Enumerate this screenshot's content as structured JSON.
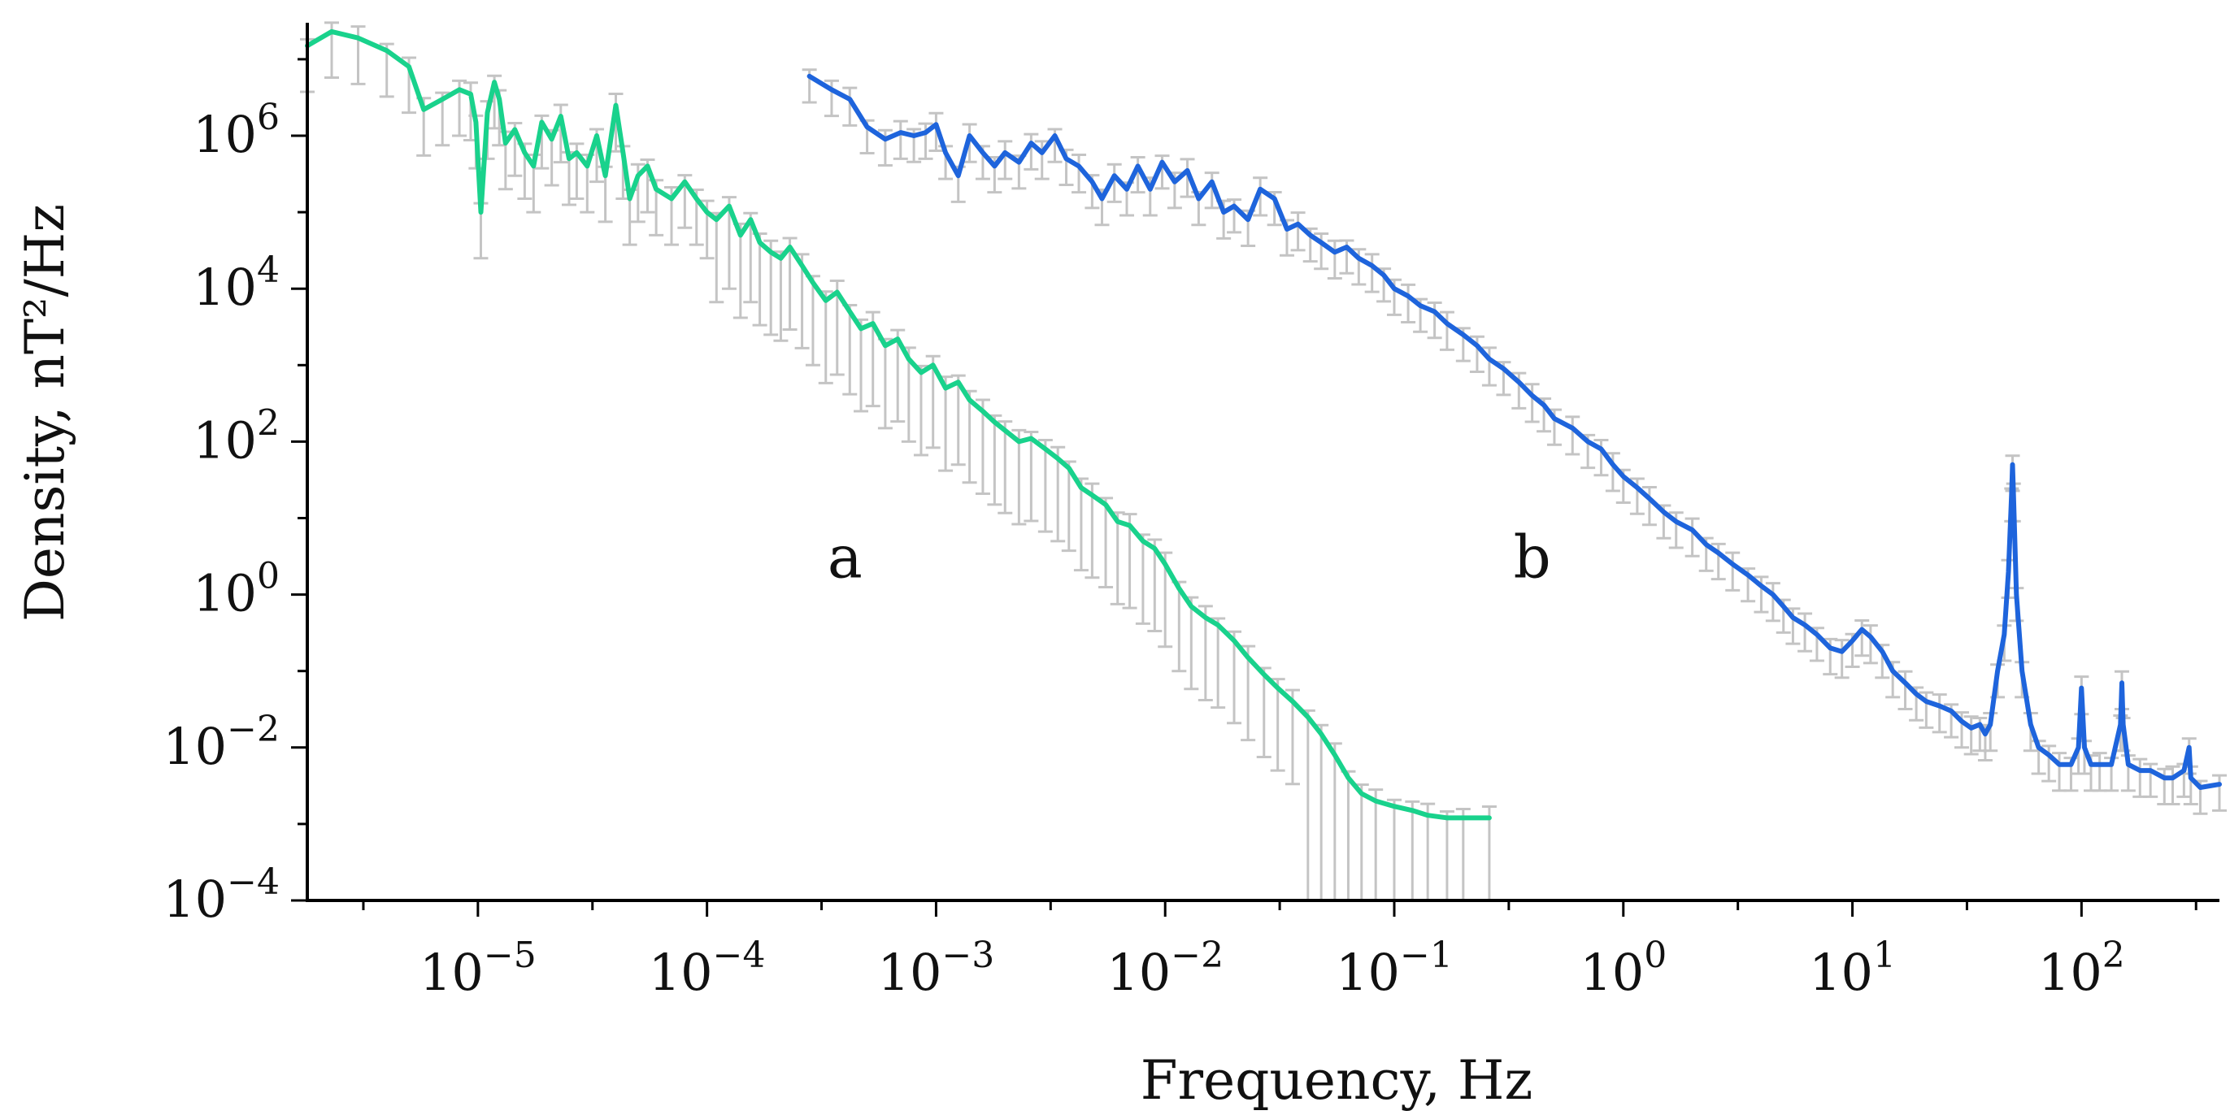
{
  "chart_data": {
    "type": "line",
    "title": "",
    "xlabel": "Frequency, Hz",
    "ylabel": "Density, nT²/Hz",
    "x_scale": "log",
    "y_scale": "log",
    "xlim": [
      1.8e-06,
      400
    ],
    "ylim": [
      0.0001,
      30000000.0
    ],
    "grid": false,
    "x_ticks": [
      {
        "value": 1e-05,
        "base": "10",
        "exp": "−5"
      },
      {
        "value": 0.0001,
        "base": "10",
        "exp": "−4"
      },
      {
        "value": 0.001,
        "base": "10",
        "exp": "−3"
      },
      {
        "value": 0.01,
        "base": "10",
        "exp": "−2"
      },
      {
        "value": 0.1,
        "base": "10",
        "exp": "−1"
      },
      {
        "value": 1,
        "base": "10",
        "exp": "0"
      },
      {
        "value": 10,
        "base": "10",
        "exp": "1"
      },
      {
        "value": 100,
        "base": "10",
        "exp": "2"
      }
    ],
    "y_ticks": [
      {
        "value": 0.0001,
        "base": "10",
        "exp": "−4"
      },
      {
        "value": 0.01,
        "base": "10",
        "exp": "−2"
      },
      {
        "value": 1,
        "base": "10",
        "exp": "0"
      },
      {
        "value": 100.0,
        "base": "10",
        "exp": "2"
      },
      {
        "value": 10000.0,
        "base": "10",
        "exp": "4"
      },
      {
        "value": 1000000.0,
        "base": "10",
        "exp": "6"
      }
    ],
    "series": [
      {
        "name": "a",
        "label": "a",
        "label_at": [
          0.0004,
          3
        ],
        "color": "#19d28c",
        "errorbar_color": "#c4c4c4",
        "points": [
          [
            1.8e-06,
            15000000.0
          ],
          [
            2.3e-06,
            23000000.0
          ],
          [
            3e-06,
            19000000.0
          ],
          [
            4e-06,
            13000000.0
          ],
          [
            5e-06,
            8000000.0
          ],
          [
            5.8e-06,
            2200000.0
          ],
          [
            7e-06,
            3000000.0
          ],
          [
            8.3e-06,
            4000000.0
          ],
          [
            9.3e-06,
            3500000.0
          ],
          [
            9.8e-06,
            1500000.0
          ],
          [
            1.03e-05,
            100000.0
          ],
          [
            1.1e-05,
            2000000.0
          ],
          [
            1.18e-05,
            5000000.0
          ],
          [
            1.24e-05,
            3000000.0
          ],
          [
            1.32e-05,
            800000.0
          ],
          [
            1.45e-05,
            1200000.0
          ],
          [
            1.6e-05,
            600000.0
          ],
          [
            1.75e-05,
            400000.0
          ],
          [
            1.9e-05,
            1500000.0
          ],
          [
            2.1e-05,
            900000.0
          ],
          [
            2.3e-05,
            1800000.0
          ],
          [
            2.5e-05,
            500000.0
          ],
          [
            2.7e-05,
            600000.0
          ],
          [
            3e-05,
            400000.0
          ],
          [
            3.3e-05,
            1000000.0
          ],
          [
            3.6e-05,
            300000.0
          ],
          [
            4e-05,
            2500000.0
          ],
          [
            4.3e-05,
            600000.0
          ],
          [
            4.6e-05,
            150000.0
          ],
          [
            5e-05,
            300000.0
          ],
          [
            5.5e-05,
            400000.0
          ],
          [
            6e-05,
            200000.0
          ],
          [
            7e-05,
            150000.0
          ],
          [
            8e-05,
            250000.0
          ],
          [
            9e-05,
            150000.0
          ],
          [
            0.0001,
            100000.0
          ],
          [
            0.00011,
            80000.0
          ],
          [
            0.000125,
            120000.0
          ],
          [
            0.00014,
            50000.0
          ],
          [
            0.000155,
            80000.0
          ],
          [
            0.00017,
            40000.0
          ],
          [
            0.00019,
            30000.0
          ],
          [
            0.00021,
            25000.0
          ],
          [
            0.00023,
            35000.0
          ],
          [
            0.00026,
            20000.0
          ],
          [
            0.00029,
            12000.0
          ],
          [
            0.00033,
            7000.0
          ],
          [
            0.00037,
            9000.0
          ],
          [
            0.00042,
            5000.0
          ],
          [
            0.00047,
            3000.0
          ],
          [
            0.00053,
            3500.0
          ],
          [
            0.0006,
            1800.0
          ],
          [
            0.00068,
            2200.0
          ],
          [
            0.00076,
            1200.0
          ],
          [
            0.00086,
            800
          ],
          [
            0.00097,
            1000.0
          ],
          [
            0.0011,
            500
          ],
          [
            0.00125,
            600
          ],
          [
            0.0014,
            350
          ],
          [
            0.0016,
            250
          ],
          [
            0.0018,
            180
          ],
          [
            0.002,
            140
          ],
          [
            0.0023,
            100
          ],
          [
            0.0026,
            110
          ],
          [
            0.003,
            80
          ],
          [
            0.0034,
            60
          ],
          [
            0.0038,
            45
          ],
          [
            0.0043,
            25
          ],
          [
            0.0048,
            20
          ],
          [
            0.0055,
            15
          ],
          [
            0.0062,
            9
          ],
          [
            0.007,
            8
          ],
          [
            0.008,
            5
          ],
          [
            0.009,
            4
          ],
          [
            0.01,
            2.5
          ],
          [
            0.0115,
            1.2
          ],
          [
            0.013,
            0.7
          ],
          [
            0.015,
            0.5
          ],
          [
            0.017,
            0.4
          ],
          [
            0.02,
            0.25
          ],
          [
            0.023,
            0.15
          ],
          [
            0.027,
            0.09
          ],
          [
            0.031,
            0.06
          ],
          [
            0.036,
            0.04
          ],
          [
            0.042,
            0.025
          ],
          [
            0.048,
            0.015
          ],
          [
            0.055,
            0.008
          ],
          [
            0.063,
            0.004
          ],
          [
            0.072,
            0.0025
          ],
          [
            0.083,
            0.002
          ],
          [
            0.1,
            0.0017
          ],
          [
            0.12,
            0.0015
          ],
          [
            0.14,
            0.0013
          ],
          [
            0.17,
            0.0012
          ],
          [
            0.2,
            0.0012
          ],
          [
            0.26,
            0.0012
          ]
        ]
      },
      {
        "name": "b",
        "label": "b",
        "label_at": [
          0.4,
          3
        ],
        "color": "#1e64dc",
        "errorbar_color": "#c4c4c4",
        "points": [
          [
            0.00028,
            6000000.0
          ],
          [
            0.00035,
            4000000.0
          ],
          [
            0.00042,
            3000000.0
          ],
          [
            0.0005,
            1300000.0
          ],
          [
            0.0006,
            900000.0
          ],
          [
            0.0007,
            1100000.0
          ],
          [
            0.0008,
            1000000.0
          ],
          [
            0.0009,
            1100000.0
          ],
          [
            0.001,
            1400000.0
          ],
          [
            0.0011,
            600000.0
          ],
          [
            0.00125,
            300000.0
          ],
          [
            0.0014,
            1000000.0
          ],
          [
            0.0016,
            600000.0
          ],
          [
            0.0018,
            400000.0
          ],
          [
            0.002,
            600000.0
          ],
          [
            0.0023,
            450000.0
          ],
          [
            0.0026,
            800000.0
          ],
          [
            0.0029,
            600000.0
          ],
          [
            0.0033,
            1000000.0
          ],
          [
            0.0037,
            500000.0
          ],
          [
            0.0042,
            400000.0
          ],
          [
            0.0048,
            250000.0
          ],
          [
            0.0053,
            150000.0
          ],
          [
            0.006,
            300000.0
          ],
          [
            0.0068,
            200000.0
          ],
          [
            0.0076,
            400000.0
          ],
          [
            0.0086,
            200000.0
          ],
          [
            0.0097,
            450000.0
          ],
          [
            0.011,
            250000.0
          ],
          [
            0.0125,
            350000.0
          ],
          [
            0.014,
            150000.0
          ],
          [
            0.016,
            250000.0
          ],
          [
            0.018,
            100000.0
          ],
          [
            0.02,
            120000.0
          ],
          [
            0.023,
            80000.0
          ],
          [
            0.026,
            200000.0
          ],
          [
            0.03,
            150000.0
          ],
          [
            0.034,
            60000.0
          ],
          [
            0.038,
            70000.0
          ],
          [
            0.043,
            50000.0
          ],
          [
            0.048,
            40000.0
          ],
          [
            0.055,
            30000.0
          ],
          [
            0.062,
            35000.0
          ],
          [
            0.07,
            25000.0
          ],
          [
            0.08,
            20000.0
          ],
          [
            0.09,
            15000.0
          ],
          [
            0.1,
            10000.0
          ],
          [
            0.115,
            8000.0
          ],
          [
            0.13,
            6000.0
          ],
          [
            0.15,
            5000.0
          ],
          [
            0.17,
            3500.0
          ],
          [
            0.2,
            2500.0
          ],
          [
            0.23,
            1800.0
          ],
          [
            0.26,
            1200.0
          ],
          [
            0.3,
            900
          ],
          [
            0.35,
            600
          ],
          [
            0.4,
            400
          ],
          [
            0.45,
            300
          ],
          [
            0.5,
            200
          ],
          [
            0.6,
            150
          ],
          [
            0.7,
            100
          ],
          [
            0.8,
            80
          ],
          [
            0.9,
            50
          ],
          [
            1,
            35
          ],
          [
            1.15,
            25
          ],
          [
            1.3,
            18
          ],
          [
            1.5,
            12
          ],
          [
            1.7,
            9
          ],
          [
            2,
            7
          ],
          [
            2.3,
            4.5
          ],
          [
            2.6,
            3.5
          ],
          [
            3,
            2.5
          ],
          [
            3.5,
            1.8
          ],
          [
            4,
            1.3
          ],
          [
            4.5,
            1
          ],
          [
            5,
            0.7
          ],
          [
            5.5,
            0.5
          ],
          [
            6.2,
            0.4
          ],
          [
            7,
            0.3
          ],
          [
            8,
            0.2
          ],
          [
            9,
            0.18
          ],
          [
            10,
            0.25
          ],
          [
            11,
            0.35
          ],
          [
            12,
            0.28
          ],
          [
            13.5,
            0.18
          ],
          [
            15,
            0.1
          ],
          [
            17,
            0.07
          ],
          [
            19,
            0.05
          ],
          [
            21,
            0.04
          ],
          [
            24,
            0.035
          ],
          [
            27,
            0.03
          ],
          [
            30,
            0.022
          ],
          [
            33,
            0.018
          ],
          [
            36,
            0.02
          ],
          [
            38,
            0.015
          ],
          [
            40,
            0.02
          ],
          [
            43,
            0.1
          ],
          [
            46,
            0.3
          ],
          [
            48,
            2
          ],
          [
            49.5,
            20
          ],
          [
            50,
            50
          ],
          [
            50.5,
            20
          ],
          [
            52,
            1
          ],
          [
            55,
            0.1
          ],
          [
            60,
            0.02
          ],
          [
            65,
            0.01
          ],
          [
            72,
            0.008
          ],
          [
            80,
            0.006
          ],
          [
            90,
            0.006
          ],
          [
            97,
            0.01
          ],
          [
            100,
            0.06
          ],
          [
            103,
            0.01
          ],
          [
            110,
            0.006
          ],
          [
            120,
            0.006
          ],
          [
            135,
            0.006
          ],
          [
            148,
            0.02
          ],
          [
            150,
            0.07
          ],
          [
            152,
            0.02
          ],
          [
            160,
            0.006
          ],
          [
            180,
            0.005
          ],
          [
            200,
            0.005
          ],
          [
            230,
            0.004
          ],
          [
            250,
            0.004
          ],
          [
            280,
            0.005
          ],
          [
            295,
            0.01
          ],
          [
            300,
            0.004
          ],
          [
            330,
            0.003
          ],
          [
            400,
            0.0033
          ]
        ]
      }
    ]
  }
}
